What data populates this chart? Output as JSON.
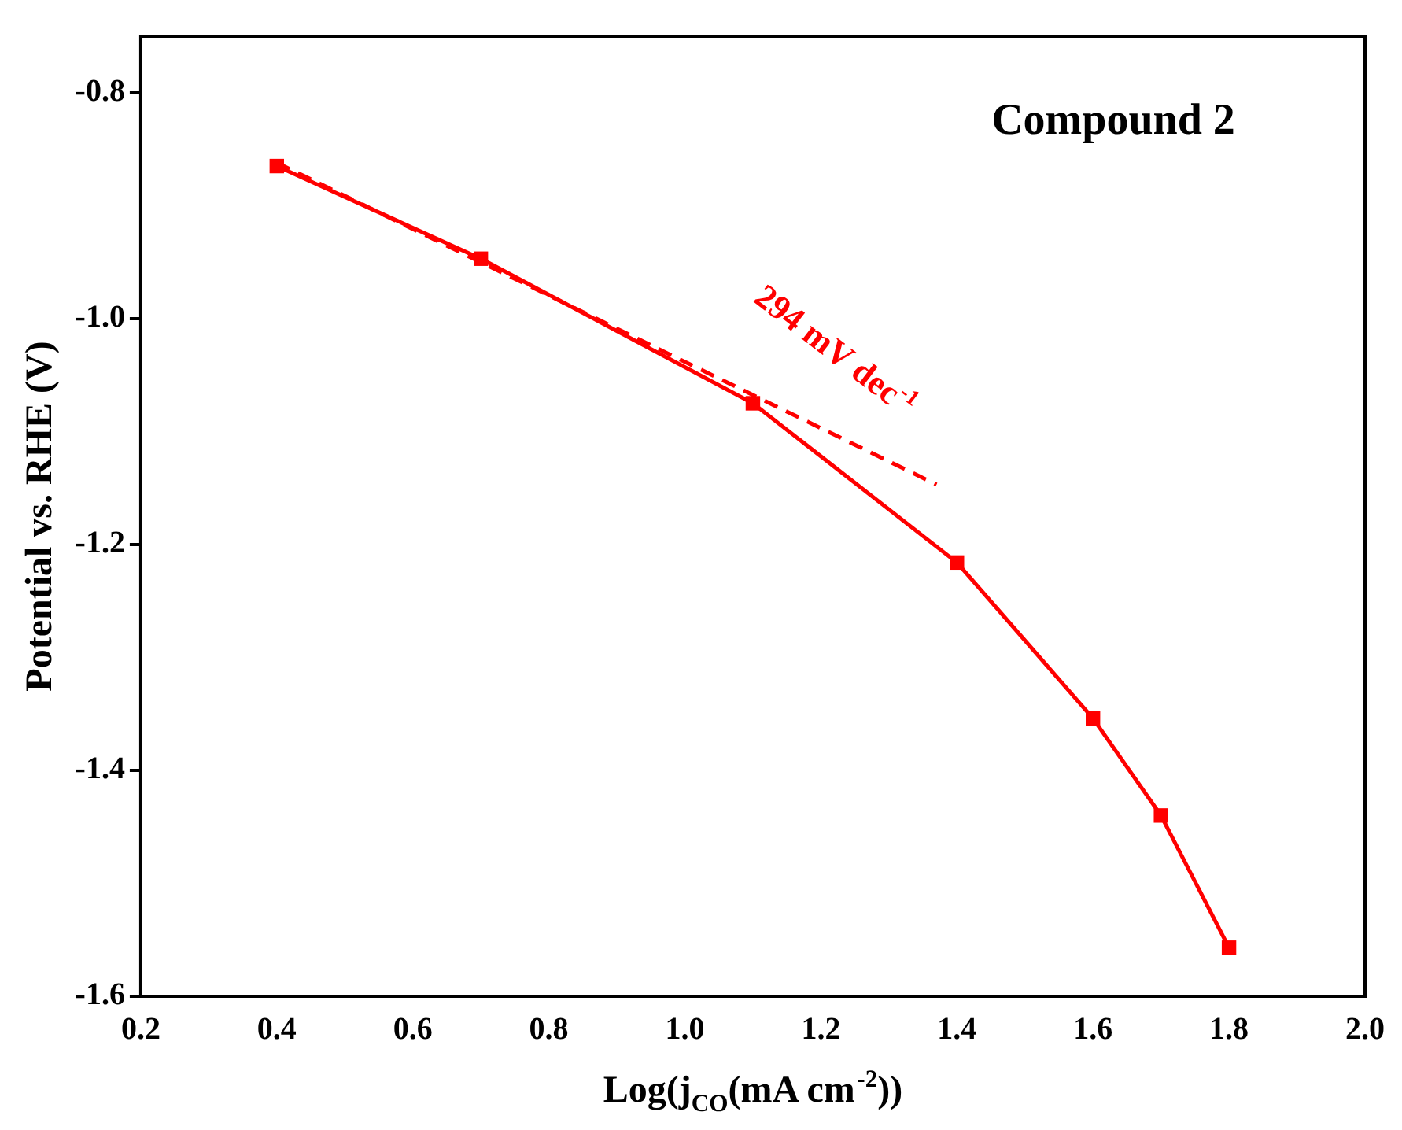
{
  "chart_data": {
    "type": "line",
    "title": "Compound 2",
    "xlabel": "Log(j$_{CO}$(mA cm$^{-2}$))",
    "ylabel": "Potential vs. RHE (V)",
    "x": [
      0.4,
      0.7,
      1.1,
      1.4,
      1.6,
      1.7,
      1.8
    ],
    "series": [
      {
        "color": "#ff0000",
        "values": [
          -0.865,
          -0.947,
          -1.075,
          -1.216,
          -1.354,
          -1.44,
          -1.557
        ],
        "marker": "square",
        "line_style": "solid"
      },
      {
        "type": "line",
        "color": "#ff0000",
        "x": [
          0.4,
          1.37
        ],
        "values": [
          -0.862,
          -1.147
        ],
        "marker": "none",
        "line_style": "dashed"
      }
    ],
    "annotations": [
      "294 mV dec$^{-1}$"
    ],
    "xlim": [
      0.2,
      2.0
    ],
    "ylim": [
      -1.6,
      -0.75
    ],
    "xticks": [
      0.2,
      0.4,
      0.6,
      0.8,
      {
        "value": 1,
        "label": "1.0"
      },
      1.2,
      1.4,
      1.6,
      1.8,
      {
        "value": 2,
        "label": "2.0"
      }
    ],
    "yticks": [
      {
        "value": -1.6,
        "label": "-1.6"
      },
      {
        "value": -1.4,
        "label": "-1.4"
      },
      {
        "value": -1.2,
        "label": "-1.2"
      },
      {
        "value": -1,
        "label": "-1.0"
      },
      {
        "value": -0.8,
        "label": "-0.8"
      }
    ],
    "grid": false,
    "legend": false
  }
}
